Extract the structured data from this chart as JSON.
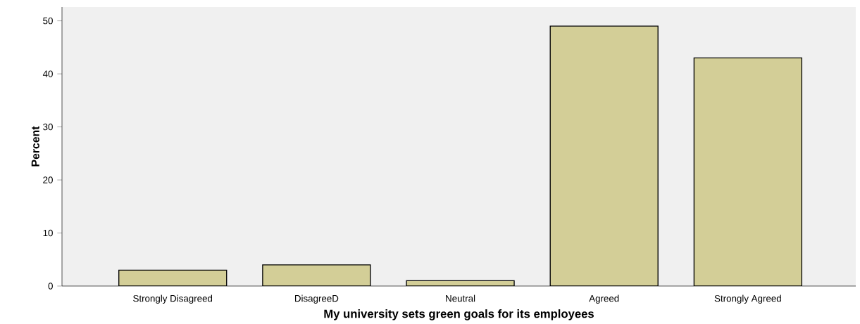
{
  "chart_data": {
    "type": "bar",
    "xlabel": "My university sets green goals for its employees",
    "ylabel": "Percent",
    "categories": [
      "Strongly Disagreed",
      "DisagreeD",
      "Neutral",
      "Agreed",
      "Strongly Agreed"
    ],
    "values": [
      3,
      4,
      1,
      49,
      43
    ],
    "color": "#d3ce97",
    "ylim": [
      0,
      52.6
    ],
    "yticks": [
      0,
      10,
      20,
      30,
      40,
      50
    ]
  }
}
